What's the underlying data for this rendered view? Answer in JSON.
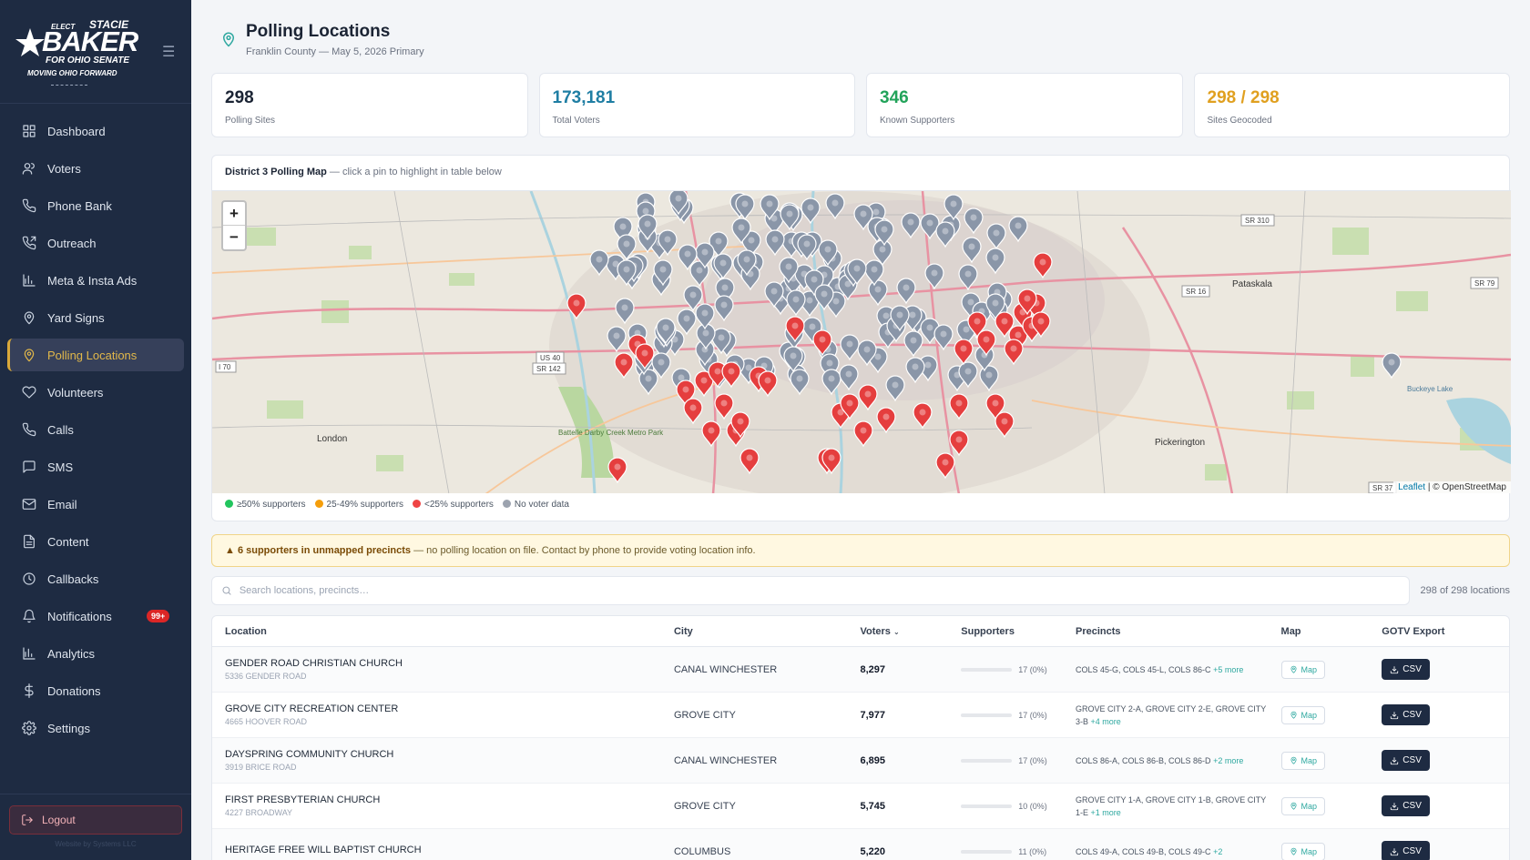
{
  "brand": {
    "elect": "ELECT",
    "first": "STACIE",
    "last": "BAKER",
    "for_line": "FOR OHIO SENATE",
    "tagline": "MOVING OHIO FORWARD"
  },
  "nav": [
    {
      "label": "Dashboard",
      "icon": "dashboard-icon"
    },
    {
      "label": "Voters",
      "icon": "users-icon"
    },
    {
      "label": "Phone Bank",
      "icon": "phone-icon"
    },
    {
      "label": "Outreach",
      "icon": "phone-outgoing-icon"
    },
    {
      "label": "Meta & Insta Ads",
      "icon": "bar-chart-icon"
    },
    {
      "label": "Yard Signs",
      "icon": "map-pin-icon"
    },
    {
      "label": "Polling Locations",
      "icon": "map-pin-icon",
      "active": true
    },
    {
      "label": "Volunteers",
      "icon": "heart-icon"
    },
    {
      "label": "Calls",
      "icon": "phone-icon"
    },
    {
      "label": "SMS",
      "icon": "message-icon"
    },
    {
      "label": "Email",
      "icon": "mail-icon"
    },
    {
      "label": "Content",
      "icon": "file-icon"
    },
    {
      "label": "Callbacks",
      "icon": "clock-icon"
    },
    {
      "label": "Notifications",
      "icon": "bell-icon",
      "badge": "99+"
    },
    {
      "label": "Analytics",
      "icon": "bar-chart-icon"
    },
    {
      "label": "Donations",
      "icon": "dollar-icon"
    },
    {
      "label": "Settings",
      "icon": "gear-icon"
    }
  ],
  "logout_label": "Logout",
  "footer_note": "Website by Systems LLC",
  "page": {
    "title": "Polling Locations",
    "subtitle": "Franklin County — May 5, 2026 Primary"
  },
  "stats": [
    {
      "value": "298",
      "label": "Polling Sites",
      "color": "#1b2434"
    },
    {
      "value": "173,181",
      "label": "Total Voters",
      "color": "#1f7ea3"
    },
    {
      "value": "346",
      "label": "Known Supporters",
      "color": "#22a35a"
    },
    {
      "value": "298 / 298",
      "label": "Sites Geocoded",
      "color": "#e0a020"
    }
  ],
  "map": {
    "title": "District 3 Polling Map",
    "hint": "— click a pin to highlight in table below",
    "attribution_leaflet": "Leaflet",
    "attribution_osm": "| © OpenStreetMap",
    "labels": [
      "London",
      "Pickerington",
      "Pataskala",
      "Battelle Darby Creek Metro Park",
      "Buckeye Lake",
      "SR 310",
      "SR 16",
      "SR 79",
      "US 40",
      "SR 142",
      "I 70",
      "SR 37"
    ],
    "legend": [
      {
        "label": "≥50% supporters",
        "color": "#22c55e"
      },
      {
        "label": "25-49% supporters",
        "color": "#f59e0b"
      },
      {
        "label": "<25% supporters",
        "color": "#ef4444"
      },
      {
        "label": "No voter data",
        "color": "#9ca3af"
      }
    ]
  },
  "alert": {
    "strong": "6 supporters in unmapped precincts",
    "text": "— no polling location on file. Contact by phone to provide voting location info."
  },
  "search": {
    "placeholder": "Search locations, precincts…",
    "count": "298 of 298 locations"
  },
  "table": {
    "headers": [
      "Location",
      "City",
      "Voters",
      "Supporters",
      "Precincts",
      "Map",
      "GOTV Export"
    ],
    "map_btn": "Map",
    "csv_btn": "CSV",
    "rows": [
      {
        "name": "GENDER ROAD CHRISTIAN CHURCH",
        "addr": "5336 GENDER ROAD",
        "city": "CANAL WINCHESTER",
        "voters": "8,297",
        "supporters": "17 (0%)",
        "precincts": "COLS 45-G, COLS 45-L, COLS 86-C",
        "more": "+5 more"
      },
      {
        "name": "GROVE CITY RECREATION CENTER",
        "addr": "4665 HOOVER ROAD",
        "city": "GROVE CITY",
        "voters": "7,977",
        "supporters": "17 (0%)",
        "precincts": "GROVE CITY 2-A, GROVE CITY 2-E, GROVE CITY 3-B",
        "more": "+4 more"
      },
      {
        "name": "DAYSPRING COMMUNITY CHURCH",
        "addr": "3919 BRICE ROAD",
        "city": "CANAL WINCHESTER",
        "voters": "6,895",
        "supporters": "17 (0%)",
        "precincts": "COLS 86-A, COLS 86-B, COLS 86-D",
        "more": "+2 more"
      },
      {
        "name": "FIRST PRESBYTERIAN CHURCH",
        "addr": "4227 BROADWAY",
        "city": "GROVE CITY",
        "voters": "5,745",
        "supporters": "10 (0%)",
        "precincts": "GROVE CITY 1-A, GROVE CITY 1-B, GROVE CITY 1-E",
        "more": "+1 more"
      },
      {
        "name": "HERITAGE FREE WILL BAPTIST CHURCH",
        "addr": "",
        "city": "COLUMBUS",
        "voters": "5,220",
        "supporters": "11 (0%)",
        "precincts": "COLS 49-A, COLS 49-B, COLS 49-C",
        "more": "+2"
      }
    ]
  }
}
